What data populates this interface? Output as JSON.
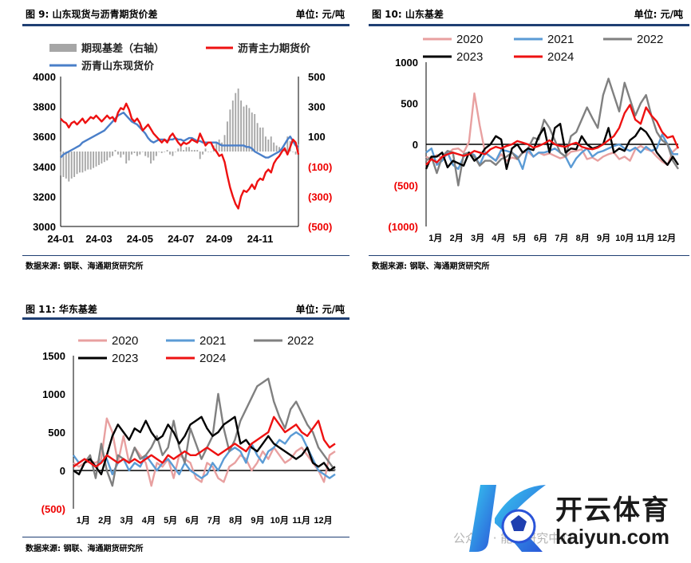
{
  "panel1": {
    "title": "图 9:   山东现货与沥青期货价差",
    "unit": "单位: 元/吨",
    "source": "数据来源: 钢联、海通期货研究所"
  },
  "panel2": {
    "title": "图 10:   山东基差",
    "unit": "单位: 元/吨",
    "source": "数据来源: 钢联、海通期货研究所"
  },
  "panel3": {
    "title": "图 11:   华东基差",
    "unit": "单位: 元/吨",
    "source": "数据来源: 钢联、海通期货研究所"
  },
  "logo": {
    "brand": "开云体育",
    "domain": "kaiyun.com",
    "watermark": "公众号 · 能源研究中心"
  },
  "chart_data": [
    {
      "type": "line",
      "title": "",
      "x_ticks": [
        "24-01",
        "24-03",
        "24-05",
        "24-07",
        "24-09",
        "24-11"
      ],
      "y_left": {
        "ticks": [
          3000,
          3200,
          3400,
          3600,
          3800,
          4000
        ],
        "lim": [
          3000,
          4000
        ]
      },
      "y_right": {
        "ticks": [
          "(500)",
          "(300)",
          "(100)",
          "100",
          "300",
          "500"
        ],
        "lim": [
          -500,
          500
        ]
      },
      "legend": [
        "期现基差（右轴）",
        "沥青主力期货价",
        "沥青山东现货价"
      ],
      "colors": {
        "basis": "#a6a6a6",
        "futures": "#ee1111",
        "spot": "#4a7fc9"
      },
      "series": [
        {
          "name": "沥青主力期货价",
          "axis": "left",
          "values": [
            3720,
            3700,
            3690,
            3660,
            3690,
            3700,
            3680,
            3700,
            3720,
            3690,
            3710,
            3730,
            3720,
            3740,
            3720,
            3700,
            3720,
            3740,
            3720,
            3730,
            3700,
            3760,
            3790,
            3780,
            3820,
            3780,
            3720,
            3700,
            3720,
            3690,
            3640,
            3660,
            3680,
            3650,
            3620,
            3600,
            3580,
            3560,
            3580,
            3560,
            3600,
            3620,
            3590,
            3560,
            3540,
            3560,
            3550,
            3560,
            3580,
            3570,
            3560,
            3620,
            3580,
            3540,
            3560,
            3560,
            3520,
            3500,
            3470,
            3480,
            3430,
            3340,
            3260,
            3200,
            3150,
            3120,
            3200,
            3240,
            3230,
            3250,
            3280,
            3250,
            3300,
            3320,
            3310,
            3360,
            3380,
            3360,
            3420,
            3450,
            3470,
            3500,
            3520,
            3480,
            3530,
            3580,
            3560,
            3480
          ]
        },
        {
          "name": "沥青山东现货价",
          "axis": "left",
          "values": [
            3460,
            3480,
            3490,
            3500,
            3510,
            3520,
            3530,
            3540,
            3560,
            3570,
            3580,
            3590,
            3600,
            3610,
            3620,
            3630,
            3640,
            3660,
            3680,
            3700,
            3720,
            3740,
            3750,
            3760,
            3740,
            3720,
            3700,
            3690,
            3680,
            3660,
            3640,
            3620,
            3590,
            3570,
            3560,
            3570,
            3580,
            3580,
            3580,
            3570,
            3580,
            3580,
            3590,
            3580,
            3580,
            3570,
            3580,
            3590,
            3590,
            3580,
            3570,
            3570,
            3560,
            3560,
            3560,
            3560,
            3560,
            3560,
            3550,
            3540,
            3540,
            3540,
            3540,
            3540,
            3540,
            3540,
            3540,
            3540,
            3530,
            3530,
            3520,
            3500,
            3490,
            3480,
            3470,
            3460,
            3460,
            3470,
            3480,
            3490,
            3500,
            3520,
            3550,
            3580,
            3600,
            3570,
            3540,
            3530
          ]
        },
        {
          "name": "期现基差（右轴）",
          "axis": "right",
          "type": "bar",
          "values": [
            -160,
            -170,
            -180,
            -200,
            -180,
            -170,
            -150,
            -140,
            -140,
            -130,
            -120,
            -120,
            -110,
            -100,
            -90,
            -80,
            -70,
            -60,
            -40,
            -30,
            10,
            -20,
            -40,
            -20,
            -80,
            -60,
            -20,
            -10,
            -30,
            -20,
            0,
            -30,
            -40,
            -80,
            -60,
            -30,
            0,
            -10,
            0,
            10,
            -20,
            -30,
            0,
            20,
            40,
            10,
            30,
            30,
            10,
            10,
            10,
            -50,
            -20,
            20,
            0,
            0,
            40,
            60,
            80,
            60,
            110,
            200,
            280,
            340,
            390,
            420,
            340,
            300,
            310,
            290,
            260,
            250,
            190,
            160,
            160,
            100,
            80,
            100,
            60,
            40,
            30,
            20,
            30,
            100,
            70,
            0,
            -20,
            50
          ]
        }
      ]
    },
    {
      "type": "line",
      "title": "",
      "x_ticks": [
        "1月",
        "2月",
        "3月",
        "4月",
        "5月",
        "6月",
        "7月",
        "8月",
        "9月",
        "10月",
        "11月",
        "12月"
      ],
      "y_ticks": [
        "(1000)",
        "(500)",
        "0",
        "500",
        "1000"
      ],
      "ylim": [
        -1000,
        1000
      ],
      "colors": {
        "2020": "#e8a0a0",
        "2021": "#5b9bd5",
        "2022": "#808080",
        "2023": "#000000",
        "2024": "#ee1111"
      },
      "series": [
        {
          "name": "2020",
          "values": [
            -150,
            -180,
            -130,
            -170,
            -120,
            -60,
            -50,
            -100,
            30,
            620,
            230,
            -100,
            -150,
            -200,
            -120,
            -200,
            -160,
            -180,
            -100,
            -90,
            -150,
            -100,
            -130,
            -110,
            -140,
            -170,
            -150,
            -90,
            -80,
            -60,
            -180,
            -160,
            -200,
            -150,
            -120,
            -100,
            -180,
            -150,
            -200,
            -60,
            -20,
            -60,
            -80,
            -150,
            -210,
            -250,
            -90,
            -30
          ]
        },
        {
          "name": "2021",
          "values": [
            -100,
            -50,
            -250,
            -200,
            -100,
            -250,
            -300,
            -150,
            -100,
            -130,
            -250,
            -100,
            -150,
            -200,
            -70,
            -80,
            -100,
            -150,
            -300,
            -50,
            -150,
            -100,
            -100,
            -80,
            -50,
            -100,
            -150,
            -280,
            -170,
            -100,
            -50,
            -150,
            -100,
            -80,
            -50,
            -20,
            0,
            -50,
            -80,
            -40,
            -100,
            -30,
            -80,
            -50,
            120,
            0,
            -120,
            -120
          ]
        },
        {
          "name": "2022",
          "values": [
            -200,
            -150,
            -350,
            -150,
            -80,
            -100,
            -500,
            -120,
            -100,
            -150,
            -260,
            -200,
            -200,
            -250,
            -180,
            -150,
            -100,
            -180,
            -100,
            -50,
            80,
            60,
            300,
            200,
            50,
            -100,
            -150,
            100,
            150,
            300,
            450,
            320,
            200,
            600,
            800,
            600,
            400,
            750,
            550,
            350,
            500,
            600,
            350,
            150,
            50,
            0,
            -200,
            -300
          ]
        },
        {
          "name": "2023",
          "values": [
            -300,
            -150,
            -150,
            -100,
            -280,
            -200,
            -230,
            -260,
            -100,
            -200,
            -150,
            -50,
            0,
            100,
            60,
            -300,
            -50,
            0,
            -100,
            -50,
            -70,
            100,
            200,
            -100,
            200,
            250,
            -100,
            -50,
            -60,
            100,
            0,
            -50,
            -30,
            0,
            200,
            -100,
            -50,
            -80,
            50,
            100,
            200,
            150,
            50,
            -100,
            -180,
            -250,
            -150,
            -250
          ]
        },
        {
          "name": "2024",
          "values": [
            -250,
            -180,
            -220,
            -150,
            -120,
            -100,
            -120,
            -140,
            -120,
            -80,
            -100,
            -120,
            -60,
            -30,
            -50,
            -20,
            0,
            40,
            20,
            0,
            -40,
            -20,
            10,
            50,
            0,
            -20,
            -30,
            0,
            20,
            -30,
            -50,
            -60,
            -40,
            0,
            50,
            100,
            200,
            380,
            480,
            300,
            250,
            450,
            350,
            280,
            150,
            80,
            100,
            -50
          ]
        }
      ]
    },
    {
      "type": "line",
      "title": "",
      "x_ticks": [
        "1月",
        "2月",
        "3月",
        "4月",
        "5月",
        "6月",
        "7月",
        "8月",
        "9月",
        "10月",
        "11月",
        "12月"
      ],
      "y_ticks": [
        "(500)",
        "0",
        "500",
        "1000",
        "1500"
      ],
      "ylim": [
        -500,
        1500
      ],
      "colors": {
        "2020": "#e8a0a0",
        "2021": "#5b9bd5",
        "2022": "#808080",
        "2023": "#000000",
        "2024": "#ee1111"
      },
      "series": [
        {
          "name": "2020",
          "values": [
            100,
            50,
            100,
            120,
            100,
            150,
            680,
            500,
            100,
            450,
            100,
            300,
            200,
            100,
            -200,
            100,
            50,
            150,
            -100,
            200,
            150,
            100,
            -100,
            -150,
            100,
            50,
            -100,
            -150,
            50,
            100,
            200,
            150,
            0,
            100,
            250,
            150,
            300,
            200,
            100,
            150,
            250,
            300,
            200,
            100,
            0,
            -150,
            200,
            250
          ]
        },
        {
          "name": "2021",
          "values": [
            200,
            100,
            150,
            100,
            50,
            120,
            150,
            -50,
            100,
            150,
            0,
            100,
            50,
            200,
            100,
            0,
            100,
            150,
            50,
            -50,
            100,
            0,
            -50,
            -100,
            -50,
            100,
            0,
            150,
            250,
            300,
            250,
            100,
            350,
            200,
            100,
            250,
            300,
            400,
            350,
            450,
            500,
            450,
            300,
            150,
            0,
            -50,
            -100,
            -50
          ]
        },
        {
          "name": "2022",
          "values": [
            0,
            -50,
            100,
            200,
            -100,
            350,
            0,
            -200,
            200,
            150,
            100,
            300,
            150,
            200,
            300,
            450,
            200,
            300,
            650,
            300,
            100,
            550,
            350,
            150,
            300,
            450,
            1000,
            550,
            250,
            400,
            650,
            800,
            950,
            1100,
            1150,
            1200,
            900,
            700,
            550,
            800,
            900,
            750,
            600,
            500,
            300,
            200,
            100,
            0
          ]
        },
        {
          "name": "2023",
          "values": [
            0,
            -50,
            100,
            150,
            50,
            -50,
            200,
            450,
            600,
            500,
            400,
            550,
            500,
            650,
            500,
            400,
            450,
            600,
            500,
            350,
            450,
            600,
            650,
            700,
            550,
            450,
            500,
            600,
            650,
            700,
            350,
            400,
            300,
            250,
            350,
            450,
            350,
            300,
            250,
            200,
            150,
            200,
            300,
            100,
            50,
            100,
            0,
            50
          ]
        },
        {
          "name": "2024",
          "values": [
            50,
            100,
            150,
            100,
            50,
            100,
            200,
            150,
            100,
            150,
            100,
            150,
            100,
            150,
            200,
            150,
            100,
            200,
            150,
            200,
            250,
            200,
            200,
            250,
            300,
            250,
            200,
            250,
            300,
            350,
            300,
            250,
            350,
            400,
            450,
            500,
            700,
            600,
            500,
            550,
            600,
            500,
            450,
            550,
            650,
            400,
            300,
            350
          ]
        }
      ]
    }
  ]
}
